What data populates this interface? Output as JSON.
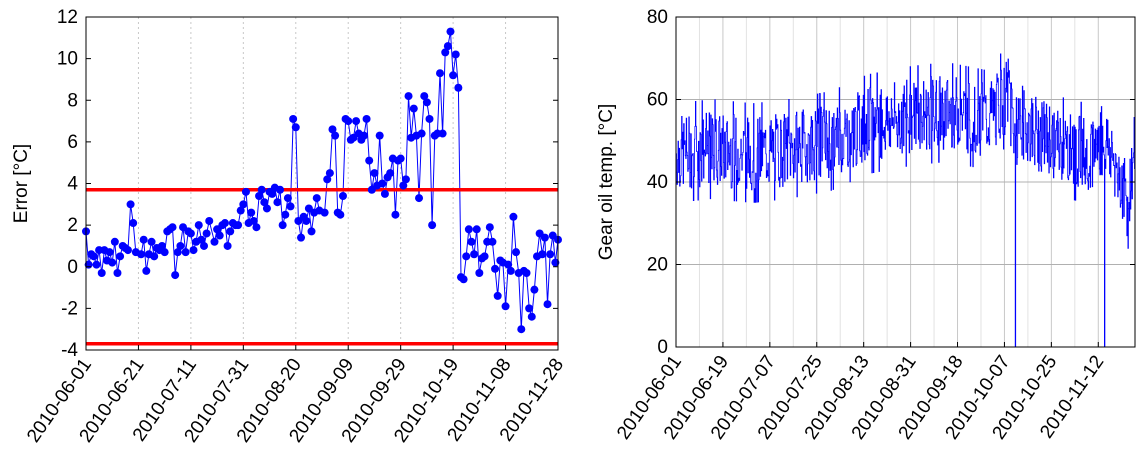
{
  "chart_data": [
    {
      "type": "line",
      "ylabel": "Error [°C]",
      "xlabel": "",
      "ylim": [
        -4,
        12
      ],
      "yticks": [
        -4,
        -2,
        0,
        2,
        4,
        6,
        8,
        10,
        12
      ],
      "xtick_labels": [
        "2010-06-01",
        "2010-06-21",
        "2010-07-11",
        "2010-07-31",
        "2010-08-20",
        "2010-09-09",
        "2010-09-29",
        "2010-10-19",
        "2010-11-08",
        "2010-11-28"
      ],
      "xlim": [
        "2010-06-01",
        "2010-11-28"
      ],
      "grid": "vertical dotted lines at each tick",
      "series": [
        {
          "color": "#0000ff",
          "marker": "filled-circle",
          "x": [
            "2010-06-01",
            "2010-06-02",
            "2010-06-03",
            "2010-06-04",
            "2010-06-05",
            "2010-06-06",
            "2010-06-07",
            "2010-06-08",
            "2010-06-09",
            "2010-06-10",
            "2010-06-11",
            "2010-06-12",
            "2010-06-13",
            "2010-06-14",
            "2010-06-15",
            "2010-06-16",
            "2010-06-17",
            "2010-06-18",
            "2010-06-19",
            "2010-06-20",
            "2010-06-22",
            "2010-06-23",
            "2010-06-24",
            "2010-06-25",
            "2010-06-26",
            "2010-06-27",
            "2010-06-28",
            "2010-06-29",
            "2010-06-30",
            "2010-07-01",
            "2010-07-02",
            "2010-07-03",
            "2010-07-04",
            "2010-07-05",
            "2010-07-06",
            "2010-07-07",
            "2010-07-08",
            "2010-07-09",
            "2010-07-10",
            "2010-07-11",
            "2010-07-12",
            "2010-07-13",
            "2010-07-14",
            "2010-07-15",
            "2010-07-16",
            "2010-07-17",
            "2010-07-18",
            "2010-07-20",
            "2010-07-21",
            "2010-07-22",
            "2010-07-23",
            "2010-07-24",
            "2010-07-25",
            "2010-07-26",
            "2010-07-27",
            "2010-07-28",
            "2010-07-29",
            "2010-07-30",
            "2010-07-31",
            "2010-08-01",
            "2010-08-02",
            "2010-08-03",
            "2010-08-04",
            "2010-08-05",
            "2010-08-06",
            "2010-08-07",
            "2010-08-08",
            "2010-08-09",
            "2010-08-10",
            "2010-08-11",
            "2010-08-12",
            "2010-08-13",
            "2010-08-14",
            "2010-08-15",
            "2010-08-16",
            "2010-08-17",
            "2010-08-18",
            "2010-08-19",
            "2010-08-20",
            "2010-08-21",
            "2010-08-22",
            "2010-08-23",
            "2010-08-24",
            "2010-08-25",
            "2010-08-26",
            "2010-08-27",
            "2010-08-28",
            "2010-08-29",
            "2010-08-31",
            "2010-09-01",
            "2010-09-02",
            "2010-09-03",
            "2010-09-04",
            "2010-09-05",
            "2010-09-06",
            "2010-09-07",
            "2010-09-08",
            "2010-09-09",
            "2010-09-10",
            "2010-09-11",
            "2010-09-12",
            "2010-09-13",
            "2010-09-14",
            "2010-09-15",
            "2010-09-16",
            "2010-09-17",
            "2010-09-18",
            "2010-09-19",
            "2010-09-20",
            "2010-09-21",
            "2010-09-22",
            "2010-09-23",
            "2010-09-24",
            "2010-09-25",
            "2010-09-26",
            "2010-09-27",
            "2010-09-28",
            "2010-09-29",
            "2010-09-30",
            "2010-10-01",
            "2010-10-02",
            "2010-10-03",
            "2010-10-04",
            "2010-10-05",
            "2010-10-06",
            "2010-10-07",
            "2010-10-08",
            "2010-10-09",
            "2010-10-10",
            "2010-10-11",
            "2010-10-12",
            "2010-10-13",
            "2010-10-14",
            "2010-10-15",
            "2010-10-16",
            "2010-10-17",
            "2010-10-18",
            "2010-10-19",
            "2010-10-20",
            "2010-10-21",
            "2010-10-22",
            "2010-10-23",
            "2010-10-24",
            "2010-10-25",
            "2010-10-26",
            "2010-10-27",
            "2010-10-28",
            "2010-10-29",
            "2010-10-30",
            "2010-10-31",
            "2010-11-01",
            "2010-11-02",
            "2010-11-03",
            "2010-11-04",
            "2010-11-05",
            "2010-11-06",
            "2010-11-07",
            "2010-11-08",
            "2010-11-09",
            "2010-11-10",
            "2010-11-11",
            "2010-11-12",
            "2010-11-13",
            "2010-11-14",
            "2010-11-15",
            "2010-11-16",
            "2010-11-17",
            "2010-11-18",
            "2010-11-19",
            "2010-11-20",
            "2010-11-21",
            "2010-11-22",
            "2010-11-23",
            "2010-11-24",
            "2010-11-25",
            "2010-11-26",
            "2010-11-27",
            "2010-11-28"
          ],
          "y": [
            1.7,
            0.1,
            0.6,
            0.5,
            0.1,
            0.8,
            -0.3,
            0.8,
            0.3,
            0.7,
            0.2,
            1.2,
            -0.3,
            0.5,
            1.0,
            0.9,
            0.8,
            3.0,
            2.1,
            0.7,
            0.6,
            1.3,
            -0.2,
            0.6,
            1.2,
            0.5,
            0.9,
            0.8,
            1.0,
            0.7,
            1.7,
            1.8,
            1.9,
            -0.4,
            0.7,
            1.0,
            1.9,
            0.7,
            1.7,
            1.6,
            0.8,
            1.2,
            2.0,
            1.3,
            1.0,
            1.6,
            2.2,
            1.2,
            1.8,
            1.5,
            2.0,
            2.1,
            1.0,
            1.7,
            2.1,
            2.0,
            2.0,
            2.7,
            3.0,
            3.6,
            2.1,
            2.6,
            2.2,
            1.9,
            3.4,
            3.7,
            3.1,
            2.8,
            3.6,
            3.5,
            3.8,
            3.1,
            3.7,
            2.0,
            2.5,
            3.3,
            2.9,
            7.1,
            6.7,
            2.2,
            1.4,
            2.4,
            2.2,
            2.8,
            1.7,
            2.6,
            3.3,
            2.7,
            2.6,
            4.2,
            4.5,
            6.6,
            6.3,
            2.6,
            2.5,
            3.4,
            7.1,
            7.0,
            6.1,
            6.2,
            7.0,
            6.4,
            6.1,
            6.3,
            7.1,
            5.1,
            3.7,
            4.5,
            3.9,
            6.3,
            4.0,
            3.5,
            4.3,
            4.5,
            5.2,
            2.5,
            5.1,
            5.2,
            3.9,
            4.2,
            8.2,
            6.2,
            7.6,
            6.3,
            3.3,
            6.4,
            8.2,
            7.9,
            7.1,
            2.0,
            6.3,
            6.4,
            9.3,
            6.4,
            10.3,
            10.6,
            11.3,
            9.2,
            10.2,
            8.6,
            -0.5,
            -0.6,
            0.5,
            1.8,
            1.2,
            0.6,
            1.8,
            -0.3,
            0.4,
            0.5,
            1.2,
            1.9,
            1.2,
            -0.1,
            -1.4,
            0.3,
            0.2,
            -1.9,
            0.1,
            -0.2,
            2.4,
            0.7,
            -0.3,
            -3.0,
            -0.2,
            -0.3,
            -2.0,
            -2.4,
            -1.1,
            0.5,
            1.6,
            0.6,
            1.4,
            -1.8,
            0.6,
            1.5,
            0.2,
            1.3
          ]
        },
        {
          "type": "hline",
          "color": "#ff0000",
          "y": 3.7
        },
        {
          "type": "hline",
          "color": "#ff0000",
          "y": -3.7
        }
      ]
    },
    {
      "type": "line",
      "ylabel": "Gear oil temp. [°C]",
      "xlabel": "",
      "ylim": [
        0,
        80
      ],
      "yticks": [
        0,
        20,
        40,
        60,
        80
      ],
      "xtick_labels": [
        "2010-06-01",
        "2010-06-19",
        "2010-07-07",
        "2010-07-25",
        "2010-08-13",
        "2010-08-31",
        "2010-09-18",
        "2010-10-07",
        "2010-10-25",
        "2010-11-12"
      ],
      "xlim": [
        "2010-06-01",
        "2010-11-28"
      ],
      "grid": "vertical lines at each tick and horizontal lines at y ticks",
      "series": [
        {
          "color": "#0000ff",
          "description_free": true,
          "noise": "high-frequency step signal between roughly 35 and 70",
          "x": [
            "2010-06-01",
            "2010-06-15",
            "2010-07-01",
            "2010-07-15",
            "2010-08-01",
            "2010-08-15",
            "2010-09-01",
            "2010-09-15",
            "2010-10-01",
            "2010-10-10",
            "2010-10-12",
            "2010-10-13",
            "2010-10-20",
            "2010-11-01",
            "2010-11-10",
            "2010-11-15",
            "2010-11-16",
            "2010-11-20",
            "2010-11-25",
            "2010-11-28"
          ],
          "y": [
            47,
            48,
            47,
            48,
            50,
            54,
            56,
            57,
            55,
            62,
            0,
            55,
            52,
            48,
            47,
            50,
            0,
            45,
            35,
            49
          ]
        }
      ]
    }
  ]
}
